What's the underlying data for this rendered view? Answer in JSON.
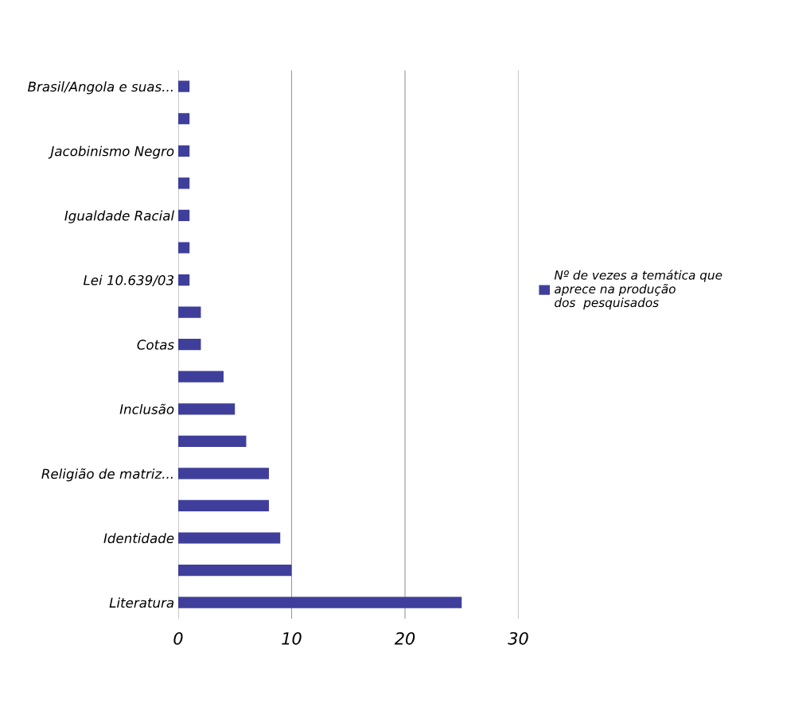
{
  "chart_data": {
    "type": "bar",
    "orientation": "horizontal",
    "categories": [
      "Brasil/Angola e suas...",
      null,
      "Jacobinismo Negro",
      null,
      "Igualdade Racial",
      null,
      "Lei 10.639/03",
      null,
      "Cotas",
      null,
      "Inclusão",
      null,
      "Religião de matriz...",
      null,
      "Identidade",
      null,
      "Literatura"
    ],
    "series": [
      {
        "name": "Nº de vezes a temática que\naprece na produção\ndos  pesquisados",
        "color": "#3f3f9b",
        "values": [
          1,
          1,
          1,
          1,
          1,
          1,
          1,
          2,
          2,
          4,
          5,
          6,
          8,
          8,
          9,
          10,
          25
        ]
      }
    ],
    "xlim": [
      0,
      30
    ],
    "xticks": [
      0,
      10,
      20,
      30
    ],
    "grid": "x",
    "legend": "right"
  }
}
